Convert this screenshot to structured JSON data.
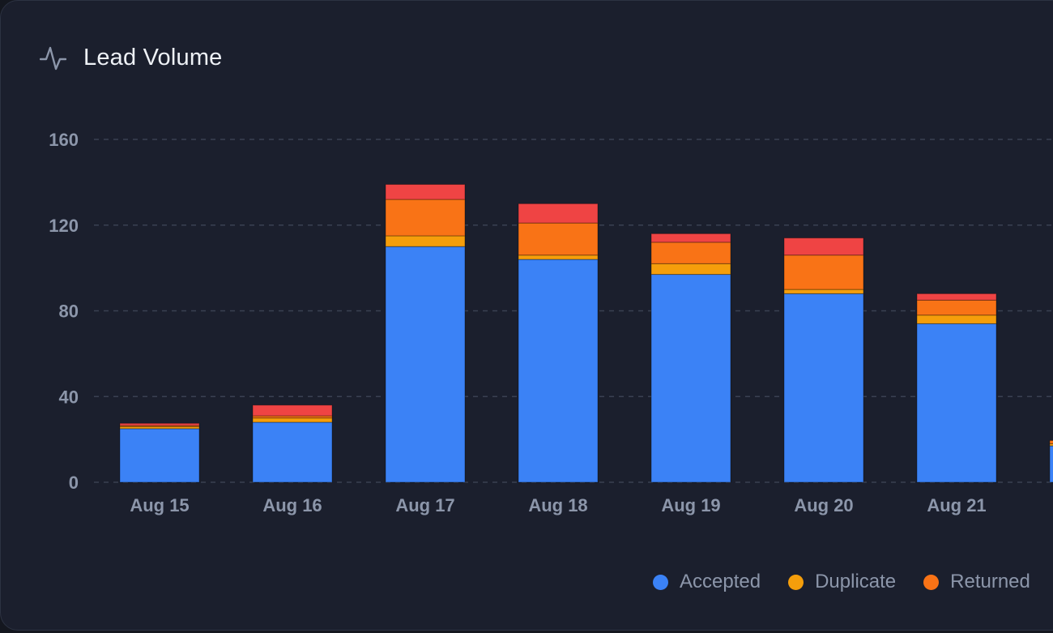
{
  "card": {
    "title": "Lead Volume",
    "icon": "activity-pulse-icon"
  },
  "colors": {
    "background": "#1b1f2d",
    "grid": "#3a4152",
    "axis_text": "#8c96aa",
    "title_text": "#eef1f6"
  },
  "chart_data": {
    "type": "bar",
    "stacked": true,
    "categories": [
      "Aug 15",
      "Aug 16",
      "Aug 17",
      "Aug 18",
      "Aug 19",
      "Aug 20",
      "Aug 21",
      ""
    ],
    "series": [
      {
        "name": "Accepted",
        "color": "#3b82f6",
        "values": [
          25,
          28,
          110,
          104,
          97,
          88,
          74,
          17
        ]
      },
      {
        "name": "Duplicate",
        "color": "#f59e0b",
        "values": [
          1,
          2,
          5,
          2,
          5,
          2,
          4,
          1
        ]
      },
      {
        "name": "Returned",
        "color": "#f97316",
        "values": [
          0.5,
          1,
          17,
          15,
          10,
          16,
          7,
          1.5
        ]
      },
      {
        "color": "#ef4444",
        "values": [
          1,
          5,
          7,
          9,
          4,
          8,
          3,
          0
        ]
      }
    ],
    "y_ticks": [
      0,
      40,
      80,
      120,
      160
    ],
    "ylim": [
      0,
      160
    ],
    "grid": "horizontal-dashed",
    "legend_position": "bottom-right",
    "title": "Lead Volume"
  }
}
